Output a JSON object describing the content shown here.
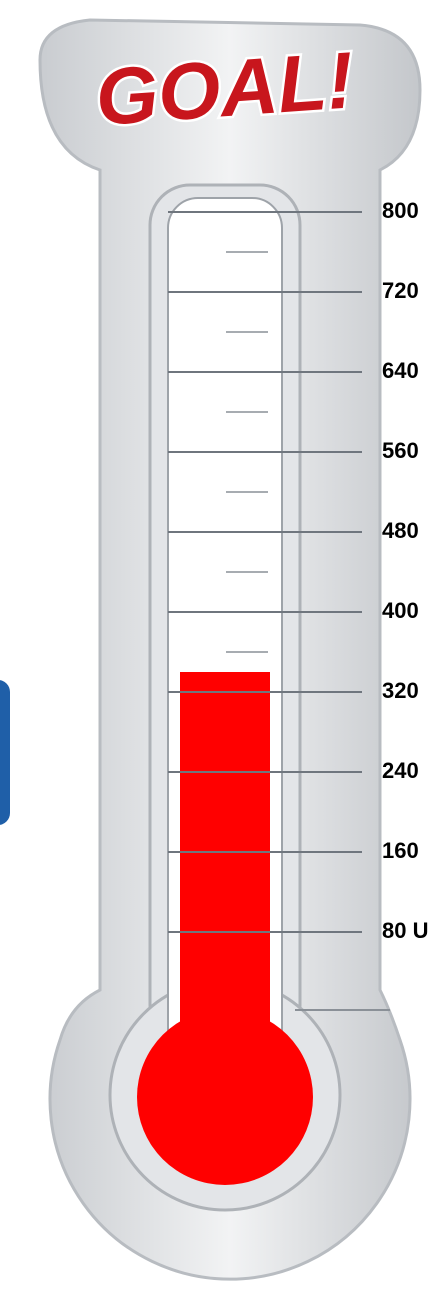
{
  "chart_data": {
    "type": "thermometer",
    "title": "GOAL!",
    "value": 340,
    "color": "#ff0000",
    "ylim": [
      0,
      800
    ],
    "yticks": [
      800,
      720,
      640,
      560,
      480,
      400,
      320,
      240,
      160,
      {
        "value": 80,
        "label": "80 U"
      }
    ],
    "minor_yticks": [
      760,
      680,
      600,
      520,
      440,
      360
    ]
  }
}
